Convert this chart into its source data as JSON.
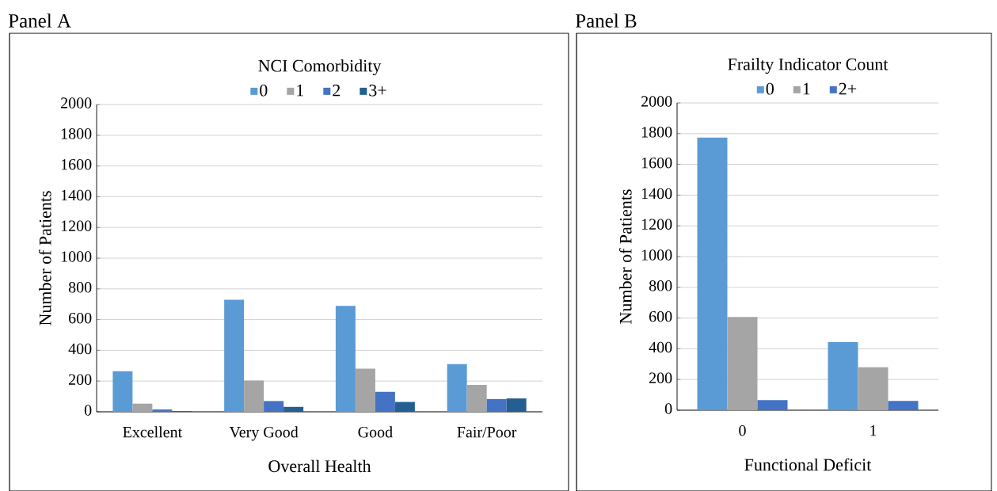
{
  "chart_data": [
    {
      "type": "bar",
      "title": "Panel A",
      "legend_title": "NCI Comorbidity",
      "xlabel": "Overall Health",
      "ylabel": "Number of Patients",
      "categories": [
        "Excellent",
        "Very Good",
        "Good",
        "Fair/Poor"
      ],
      "series": [
        {
          "name": "0",
          "color": "#5b9bd5",
          "values": [
            264,
            729,
            689,
            311
          ]
        },
        {
          "name": "1",
          "color": "#a5a5a5",
          "values": [
            53,
            203,
            281,
            175
          ]
        },
        {
          "name": "2",
          "color": "#4472c4",
          "values": [
            15,
            70,
            130,
            83
          ]
        },
        {
          "name": "3+",
          "color": "#255e91",
          "values": [
            4,
            32,
            64,
            87
          ]
        }
      ],
      "ylim": [
        0,
        2000
      ],
      "yticks": [
        0,
        200,
        400,
        600,
        800,
        1000,
        1200,
        1400,
        1600,
        1800,
        2000
      ],
      "grid": "y",
      "legend": "top"
    },
    {
      "type": "bar",
      "title": "Panel B",
      "legend_title": "Frailty Indicator Count",
      "xlabel": "Functional Deficit",
      "ylabel": "Number of Patients",
      "categories": [
        "0",
        "1"
      ],
      "series": [
        {
          "name": "0",
          "color": "#5b9bd5",
          "values": [
            1774,
            443
          ]
        },
        {
          "name": "1",
          "color": "#a5a5a5",
          "values": [
            607,
            279
          ]
        },
        {
          "name": "2+",
          "color": "#4472c4",
          "values": [
            65,
            60
          ]
        }
      ],
      "ylim": [
        0,
        2000
      ],
      "yticks": [
        0,
        200,
        400,
        600,
        800,
        1000,
        1200,
        1400,
        1600,
        1800,
        2000
      ],
      "grid": "y",
      "legend": "top"
    }
  ]
}
